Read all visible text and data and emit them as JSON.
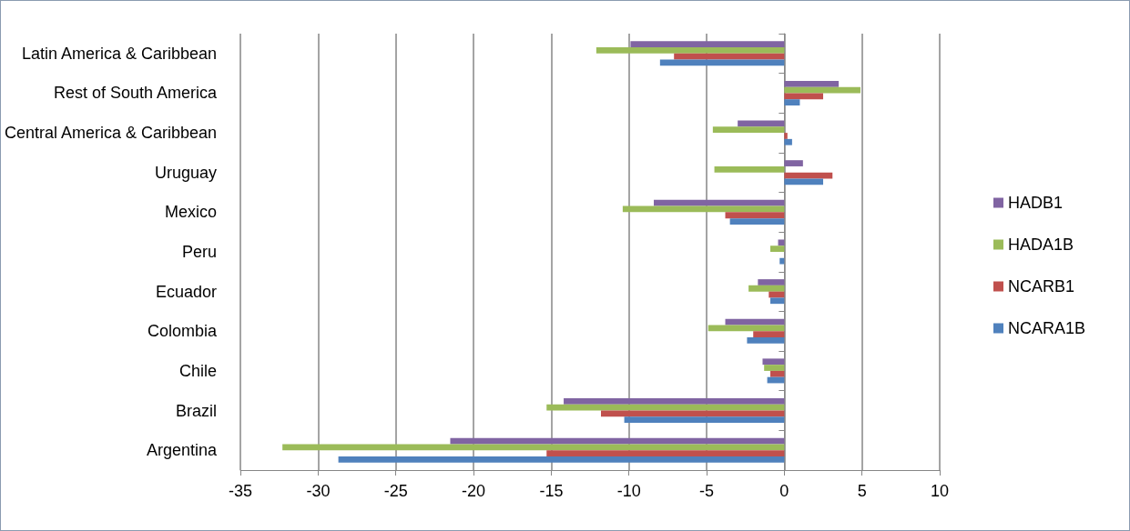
{
  "chart_data": {
    "type": "bar",
    "orientation": "horizontal",
    "categories": [
      "Latin America & Caribbean",
      "Rest of South America",
      "Central America & Caribbean",
      "Uruguay",
      "Mexico",
      "Peru",
      "Ecuador",
      "Colombia",
      "Chile",
      "Brazil",
      "Argentina"
    ],
    "series": [
      {
        "name": "HADB1",
        "color": "#8064a2",
        "values": [
          -9.9,
          3.5,
          -3.0,
          1.2,
          -8.4,
          -0.4,
          -1.7,
          -3.8,
          -1.4,
          -14.2,
          -21.5
        ]
      },
      {
        "name": "HADA1B",
        "color": "#9bbb59",
        "values": [
          -12.1,
          4.9,
          -4.6,
          -4.5,
          -10.4,
          -0.9,
          -2.3,
          -4.9,
          -1.3,
          -15.3,
          -32.3
        ]
      },
      {
        "name": "NCARB1",
        "color": "#c0504d",
        "values": [
          -7.1,
          2.5,
          0.2,
          3.1,
          -3.8,
          0,
          -1.0,
          -2.0,
          -0.9,
          -11.8,
          -15.3
        ]
      },
      {
        "name": "NCARA1B",
        "color": "#4f81bd",
        "values": [
          -8.0,
          1.0,
          0.5,
          2.5,
          -3.5,
          -0.3,
          -0.9,
          -2.4,
          -1.1,
          -10.3,
          -28.7
        ]
      }
    ],
    "xlim": [
      -35,
      10
    ],
    "xticks": [
      -35,
      -30,
      -25,
      -20,
      -15,
      -10,
      -5,
      0,
      5,
      10
    ],
    "grid": "x",
    "legend": "right"
  }
}
